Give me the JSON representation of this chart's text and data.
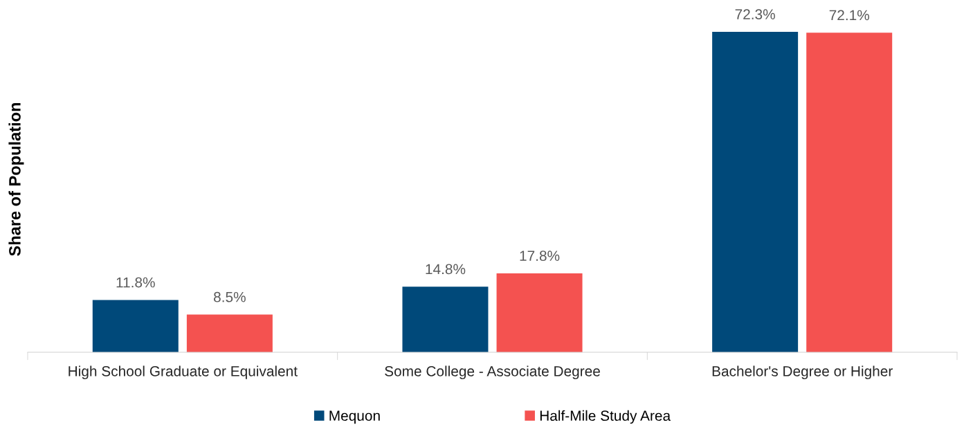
{
  "chart_data": {
    "type": "bar",
    "ylabel": "Share of Population",
    "categories": [
      "High School Graduate or Equivalent",
      "Some College - Associate Degree",
      "Bachelor's Degree or Higher"
    ],
    "series": [
      {
        "name": "Mequon",
        "color": "#00497a",
        "values": [
          11.8,
          14.8,
          72.3
        ],
        "value_labels": [
          "11.8%",
          "14.8%",
          "72.3%"
        ]
      },
      {
        "name": "Half-Mile Study Area",
        "color": "#f45250",
        "values": [
          8.5,
          17.8,
          72.1
        ],
        "value_labels": [
          "8.5%",
          "17.8%",
          "72.1%"
        ]
      }
    ],
    "grid": false,
    "legend": "bottom"
  }
}
